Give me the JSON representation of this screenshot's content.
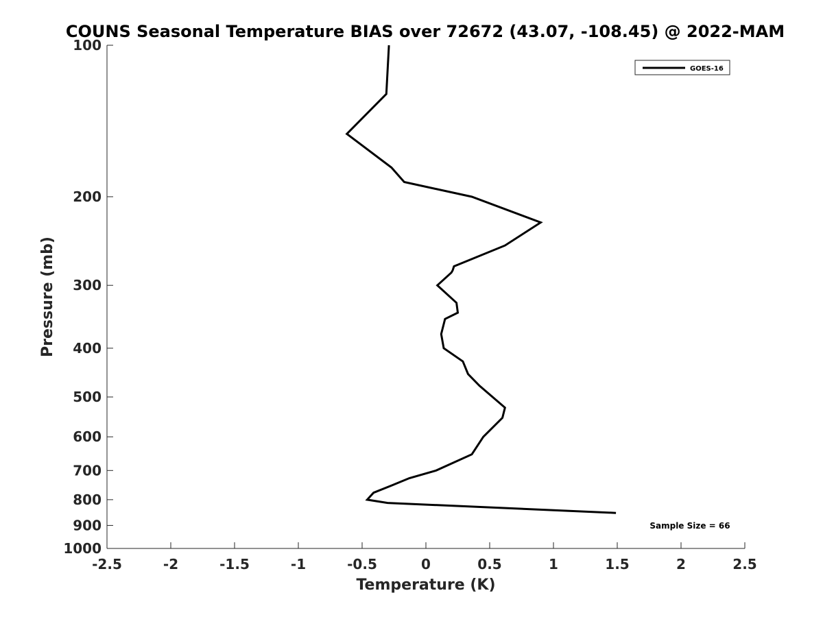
{
  "chart_data": {
    "type": "line",
    "title": "COUNS Seasonal Temperature BIAS over 72672 (43.07, -108.45) @ 2022-MAM",
    "xlabel": "Temperature (K)",
    "ylabel": "Pressure (mb)",
    "xlim": [
      -2.5,
      2.5
    ],
    "ylim": [
      1000,
      100
    ],
    "y_scale": "log",
    "y_reversed": true,
    "grid": false,
    "x_ticks": [
      -2.5,
      -2,
      -1.5,
      -1,
      -0.5,
      0,
      0.5,
      1,
      1.5,
      2,
      2.5
    ],
    "x_tick_labels": [
      "-2.5",
      "-2",
      "-1.5",
      "-1",
      "-0.5",
      "0",
      "0.5",
      "1",
      "1.5",
      "2",
      "2.5"
    ],
    "y_ticks": [
      100,
      200,
      300,
      400,
      500,
      600,
      700,
      800,
      900,
      1000
    ],
    "y_tick_labels": [
      "100",
      "200",
      "300",
      "400",
      "500",
      "600",
      "700",
      "800",
      "900",
      "1000"
    ],
    "legend": {
      "position": "top-right",
      "entries": [
        "GOES-16"
      ]
    },
    "annotation": "Sample Size = 66",
    "series": [
      {
        "name": "GOES-16",
        "color": "#000000",
        "points": [
          {
            "x": -0.29,
            "p": 100
          },
          {
            "x": -0.31,
            "p": 125
          },
          {
            "x": -0.62,
            "p": 150
          },
          {
            "x": -0.27,
            "p": 175
          },
          {
            "x": -0.17,
            "p": 187
          },
          {
            "x": 0.36,
            "p": 200
          },
          {
            "x": 0.9,
            "p": 225
          },
          {
            "x": 0.62,
            "p": 250
          },
          {
            "x": 0.22,
            "p": 275
          },
          {
            "x": 0.21,
            "p": 280
          },
          {
            "x": 0.2,
            "p": 283
          },
          {
            "x": 0.09,
            "p": 300
          },
          {
            "x": 0.24,
            "p": 325
          },
          {
            "x": 0.25,
            "p": 340
          },
          {
            "x": 0.15,
            "p": 350
          },
          {
            "x": 0.12,
            "p": 375
          },
          {
            "x": 0.14,
            "p": 400
          },
          {
            "x": 0.29,
            "p": 425
          },
          {
            "x": 0.33,
            "p": 450
          },
          {
            "x": 0.42,
            "p": 475
          },
          {
            "x": 0.62,
            "p": 525
          },
          {
            "x": 0.6,
            "p": 550
          },
          {
            "x": 0.45,
            "p": 600
          },
          {
            "x": 0.36,
            "p": 650
          },
          {
            "x": 0.08,
            "p": 700
          },
          {
            "x": -0.13,
            "p": 725
          },
          {
            "x": -0.27,
            "p": 750
          },
          {
            "x": -0.41,
            "p": 775
          },
          {
            "x": -0.46,
            "p": 800
          },
          {
            "x": -0.3,
            "p": 812
          },
          {
            "x": 1.49,
            "p": 850
          }
        ]
      }
    ]
  }
}
